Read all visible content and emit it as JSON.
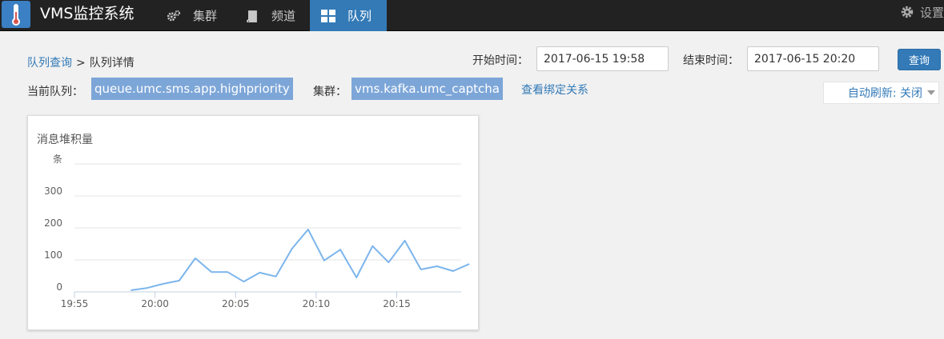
{
  "app": {
    "title": "VMS监控系统"
  },
  "nav": {
    "items": [
      {
        "label": "集群",
        "icon": "cogs-icon"
      },
      {
        "label": "频道",
        "icon": "book-icon"
      },
      {
        "label": "队列",
        "icon": "grid-icon",
        "active": true
      }
    ],
    "settings_label": "设置"
  },
  "breadcrumb": {
    "parent": "队列查询",
    "separator": ">",
    "current": "队列详情"
  },
  "time_filter": {
    "start_label": "开始时间：",
    "start_value": "2017-06-15 19:58",
    "end_label": "结束时间：",
    "end_value": "2017-06-15 20:20",
    "query_button": "查询"
  },
  "queue_info": {
    "queue_label": "当前队列：",
    "queue_value": "queue.umc.sms.app.highpriority",
    "cluster_label": "集群：",
    "cluster_value": "vms.kafka.umc_captcha",
    "binding_link": "查看绑定关系"
  },
  "auto_refresh": {
    "label": "自动刷新: 关闭"
  },
  "colors": {
    "accent": "#337ab7",
    "navbar": "#222222",
    "tag": "#7da6d8",
    "line": "#7cb5ec"
  },
  "chart_data": {
    "type": "line",
    "title": "消息堆积量",
    "ylabel": "条",
    "ylim": [
      0,
      400
    ],
    "yticks": [
      0,
      100,
      200,
      300
    ],
    "xlim": [
      "19:55",
      "20:19"
    ],
    "xticks": [
      "19:55",
      "20:00",
      "20:05",
      "20:10",
      "20:15"
    ],
    "grid": true,
    "series": [
      {
        "x": [
          "19:58.5",
          "19:59.5",
          "20:00.5",
          "20:01.5",
          "20:02.5",
          "20:03.5",
          "20:04.5",
          "20:05.5",
          "20:06.5",
          "20:07.5",
          "20:08.5",
          "20:09.5",
          "20:10.5",
          "20:11.5",
          "20:12.5",
          "20:13.5",
          "20:14.5",
          "20:15.5",
          "20:16.5",
          "20:17.5",
          "20:18.5",
          "20:19.5"
        ],
        "values": [
          5,
          12,
          25,
          35,
          105,
          62,
          62,
          32,
          60,
          48,
          135,
          195,
          98,
          132,
          45,
          143,
          92,
          160,
          70,
          80,
          65,
          87
        ]
      }
    ]
  }
}
